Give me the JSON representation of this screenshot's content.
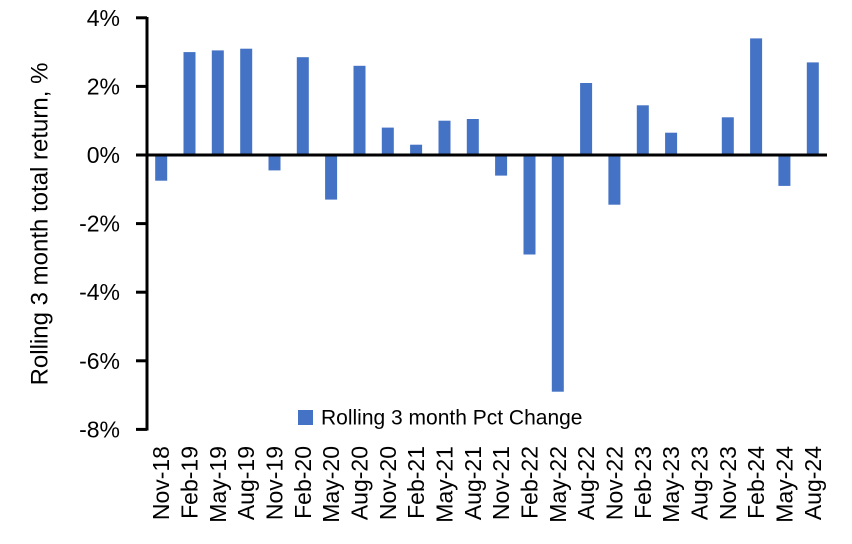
{
  "chart_data": {
    "type": "bar",
    "categories": [
      "Nov-18",
      "Feb-19",
      "May-19",
      "Aug-19",
      "Nov-19",
      "Feb-20",
      "May-20",
      "Aug-20",
      "Nov-20",
      "Feb-21",
      "May-21",
      "Aug-21",
      "Nov-21",
      "Feb-22",
      "May-22",
      "Aug-22",
      "Nov-22",
      "Feb-23",
      "May-23",
      "Aug-23",
      "Nov-23",
      "Feb-24",
      "May-24",
      "Aug-24"
    ],
    "values": [
      -0.75,
      3.0,
      3.05,
      3.1,
      -0.45,
      2.85,
      -1.3,
      2.6,
      0.8,
      0.3,
      1.0,
      1.05,
      -0.6,
      -2.9,
      -6.9,
      2.1,
      -1.45,
      1.45,
      0.65,
      0.0,
      1.1,
      3.4,
      -0.9,
      2.7
    ],
    "series_name": "Rolling 3 month Pct Change",
    "xlabel": "",
    "ylabel": "Rolling 3 month total return, %",
    "ylim": [
      -8,
      4
    ],
    "ytick_values": [
      4,
      2,
      0,
      -2,
      -4,
      -6,
      -8
    ],
    "ytick_labels": [
      "4%",
      "2%",
      "0%",
      "-2%",
      "-4%",
      "-6%",
      "-8%"
    ],
    "grid": false,
    "legend_position": "bottom-center",
    "x_label_rotation_deg": 90,
    "bar_color": "#4472C4",
    "axis_color": "#000000",
    "background_color": "#ffffff"
  }
}
